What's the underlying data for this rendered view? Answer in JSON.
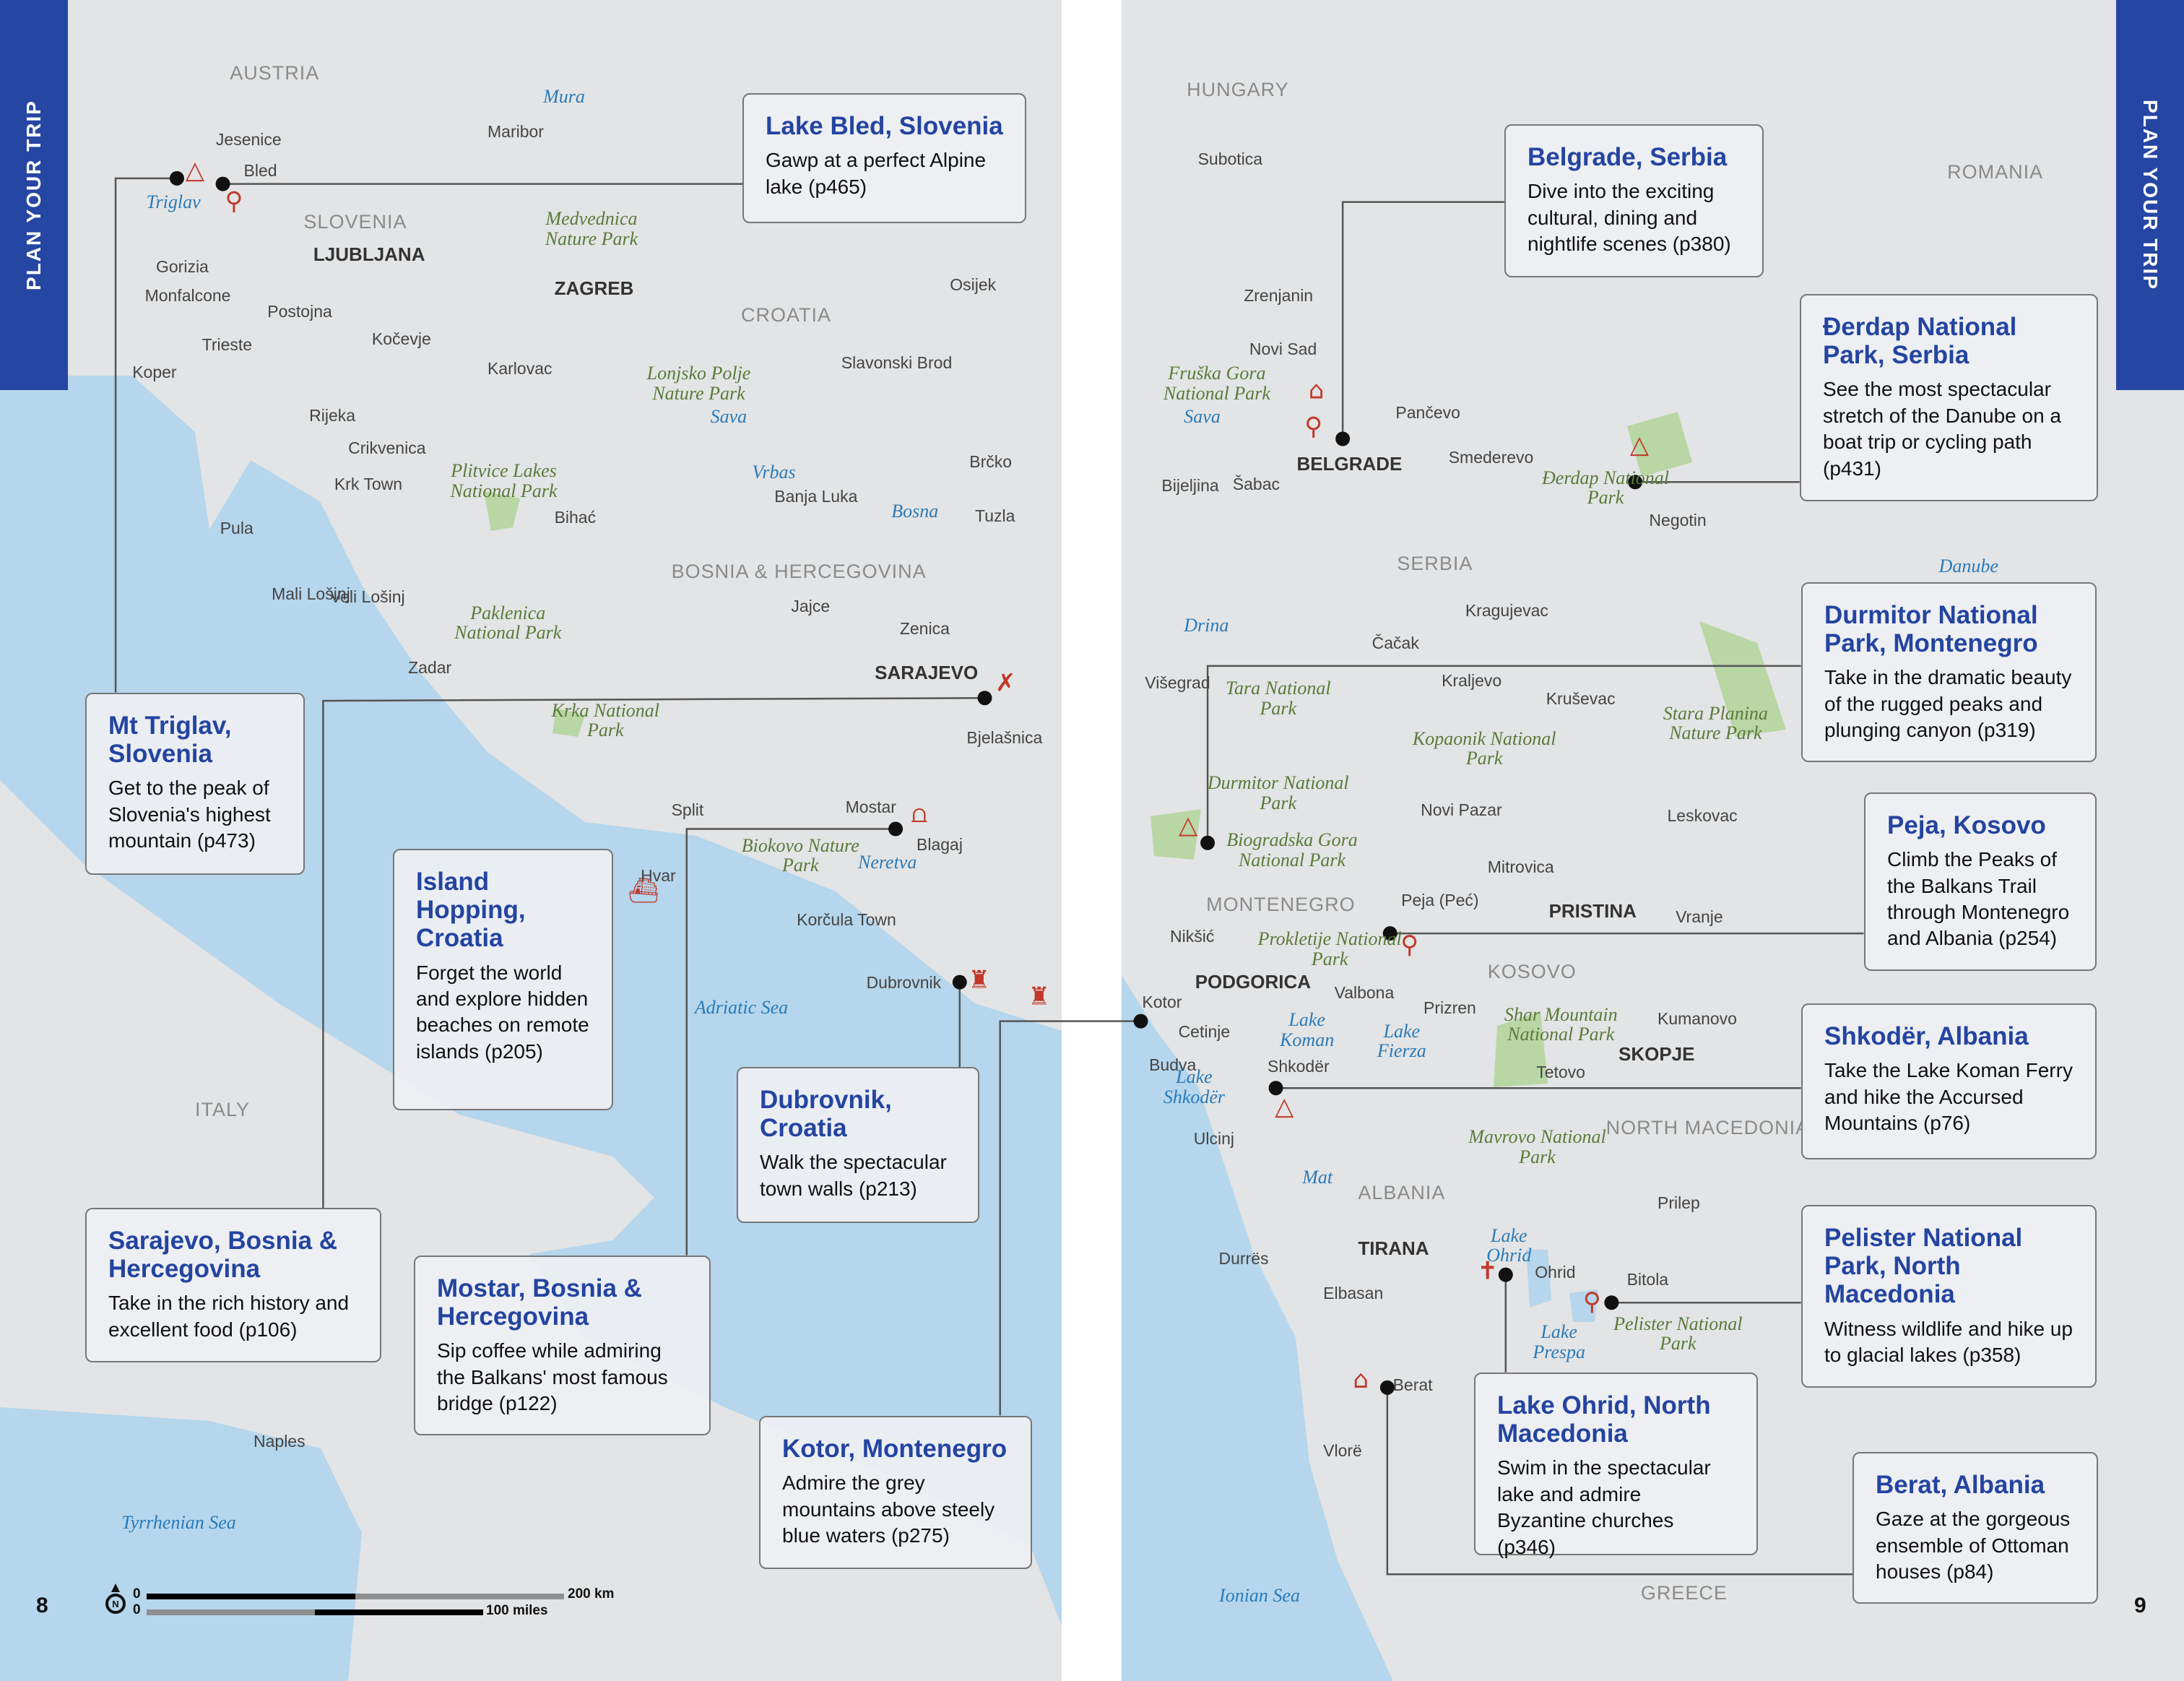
{
  "tabs": {
    "left": "PLAN YOUR TRIP",
    "right": "PLAN YOUR TRIP"
  },
  "page_numbers": {
    "left": "8",
    "right": "9"
  },
  "scale_bar": {
    "km_start": "0",
    "km_end": "200 km",
    "mi_start": "0",
    "mi_end": "100 miles"
  },
  "colors": {
    "sea": "#b5d6ec",
    "land": "#e3e4e5",
    "park": "#b9d6a5",
    "accent": "#2646a3",
    "title": "#2444a0",
    "marker": "#111111",
    "icon": "#c0392b"
  },
  "icons": [
    "north-arrow-icon",
    "capital-star-icon",
    "city-dot-icon",
    "mountain-icon",
    "hiking-icon",
    "castle-icon",
    "bridge-icon",
    "boat-icon",
    "food-icon",
    "museum-icon",
    "church-icon"
  ],
  "callouts": [
    {
      "title": "Lake Bled, Slovenia",
      "text": "Gawp at a perfect Alpine lake (p465)"
    },
    {
      "title": "Mt Triglav, Slovenia",
      "text": "Get to the peak of Slovenia's highest mountain (p473)"
    },
    {
      "title": "Island Hopping, Croatia",
      "text": "Forget the world and explore hidden beaches on remote islands (p205)"
    },
    {
      "title": "Sarajevo, Bosnia & Hercegovina",
      "text": "Take in the rich history and excellent food (p106)"
    },
    {
      "title": "Mostar, Bosnia & Hercegovina",
      "text": "Sip coffee while admiring the Balkans' most famous bridge (p122)"
    },
    {
      "title": "Dubrovnik, Croatia",
      "text": "Walk the spectacular town walls (p213)"
    },
    {
      "title": "Kotor, Montenegro",
      "text": "Admire the grey mountains above steely blue waters (p275)"
    },
    {
      "title": "Belgrade, Serbia",
      "text": "Dive into the exciting cultural, dining and nightlife scenes (p380)"
    },
    {
      "title": "Đerdap National Park, Serbia",
      "text": "See the most spectacular stretch of the Danube on a boat trip or cycling path (p431)"
    },
    {
      "title": "Durmitor National Park, Montenegro",
      "text": "Take in the dramatic beauty of the rugged peaks and plunging canyon (p319)"
    },
    {
      "title": "Peja, Kosovo",
      "text": "Climb the Peaks of the Balkans Trail through Montenegro and Albania (p254)"
    },
    {
      "title": "Shkodër, Albania",
      "text": "Take the Lake Koman Ferry and hike the Accursed Mountains (p76)"
    },
    {
      "title": "Pelister National Park, North Macedonia",
      "text": "Witness wildlife and hike up to glacial lakes (p358)"
    },
    {
      "title": "Lake Ohrid, North Macedonia",
      "text": "Swim in the spectacular lake and admire Byzantine churches (p346)"
    },
    {
      "title": "Berat, Albania",
      "text": "Gaze at the gorgeous ensemble of Ottoman houses (p84)"
    }
  ],
  "labels": [
    {
      "text": "AUSTRIA",
      "type": "country"
    },
    {
      "text": "Mura",
      "type": "river"
    },
    {
      "text": "Maribor",
      "type": "city"
    },
    {
      "text": "Jesenice",
      "type": "city"
    },
    {
      "text": "Bled",
      "type": "city"
    },
    {
      "text": "Triglav",
      "type": "river"
    },
    {
      "text": "SLOVENIA",
      "type": "country"
    },
    {
      "text": "Medvednica Nature Park",
      "type": "park"
    },
    {
      "text": "LJUBLJANA",
      "type": "capital"
    },
    {
      "text": "Gorizia",
      "type": "city"
    },
    {
      "text": "Monfalcone",
      "type": "city"
    },
    {
      "text": "Postojna",
      "type": "city"
    },
    {
      "text": "ZAGREB",
      "type": "capital"
    },
    {
      "text": "CROATIA",
      "type": "country"
    },
    {
      "text": "Osijek",
      "type": "city"
    },
    {
      "text": "Trieste",
      "type": "city"
    },
    {
      "text": "Kočevje",
      "type": "city"
    },
    {
      "text": "Karlovac",
      "type": "city"
    },
    {
      "text": "Koper",
      "type": "city"
    },
    {
      "text": "Lonjsko Polje Nature Park",
      "type": "park"
    },
    {
      "text": "Slavonski Brod",
      "type": "city"
    },
    {
      "text": "Sava",
      "type": "river"
    },
    {
      "text": "Rijeka",
      "type": "city"
    },
    {
      "text": "Crikvenica",
      "type": "city"
    },
    {
      "text": "Vrbas",
      "type": "river"
    },
    {
      "text": "Plitvice Lakes National Park",
      "type": "park"
    },
    {
      "text": "Brčko",
      "type": "city"
    },
    {
      "text": "Krk Town",
      "type": "city"
    },
    {
      "text": "Banja Luka",
      "type": "city"
    },
    {
      "text": "Bosna",
      "type": "river"
    },
    {
      "text": "Bihać",
      "type": "city"
    },
    {
      "text": "Tuzla",
      "type": "city"
    },
    {
      "text": "Pula",
      "type": "city"
    },
    {
      "text": "BOSNIA & HERCEGOVINA",
      "type": "country"
    },
    {
      "text": "Mali Lošinj",
      "type": "city"
    },
    {
      "text": "Veli Lošinj",
      "type": "city"
    },
    {
      "text": "Jajce",
      "type": "city"
    },
    {
      "text": "Paklenica National Park",
      "type": "park"
    },
    {
      "text": "Zenica",
      "type": "city"
    },
    {
      "text": "SARAJEVO",
      "type": "capital"
    },
    {
      "text": "Zadar",
      "type": "city"
    },
    {
      "text": "Krka National Park",
      "type": "park"
    },
    {
      "text": "Bjelašnica",
      "type": "city"
    },
    {
      "text": "Split",
      "type": "city"
    },
    {
      "text": "Mostar",
      "type": "city"
    },
    {
      "text": "Blagaj",
      "type": "city"
    },
    {
      "text": "Biokovo Nature Park",
      "type": "park"
    },
    {
      "text": "Hvar",
      "type": "city"
    },
    {
      "text": "Neretva",
      "type": "river"
    },
    {
      "text": "Korčula Town",
      "type": "city"
    },
    {
      "text": "Dubrovnik",
      "type": "city"
    },
    {
      "text": "Adriatic Sea",
      "type": "sea"
    },
    {
      "text": "ITALY",
      "type": "country"
    },
    {
      "text": "Naples",
      "type": "city"
    },
    {
      "text": "Tyrrhenian Sea",
      "type": "sea"
    },
    {
      "text": "HUNGARY",
      "type": "country"
    },
    {
      "text": "Subotica",
      "type": "city"
    },
    {
      "text": "ROMANIA",
      "type": "country"
    },
    {
      "text": "Zrenjanin",
      "type": "city"
    },
    {
      "text": "Novi Sad",
      "type": "city"
    },
    {
      "text": "Fruška Gora National Park",
      "type": "park"
    },
    {
      "text": "Sava",
      "type": "river"
    },
    {
      "text": "Pančevo",
      "type": "city"
    },
    {
      "text": "BELGRADE",
      "type": "capital"
    },
    {
      "text": "Smederevo",
      "type": "city"
    },
    {
      "text": "Bijeljina",
      "type": "city"
    },
    {
      "text": "Šabac",
      "type": "city"
    },
    {
      "text": "Đerdap National Park",
      "type": "park"
    },
    {
      "text": "Negotin",
      "type": "city"
    },
    {
      "text": "SERBIA",
      "type": "country"
    },
    {
      "text": "Danube",
      "type": "river"
    },
    {
      "text": "Drina",
      "type": "river"
    },
    {
      "text": "Kragujevac",
      "type": "city"
    },
    {
      "text": "Čačak",
      "type": "city"
    },
    {
      "text": "Višegrad",
      "type": "city"
    },
    {
      "text": "Tara National Park",
      "type": "park"
    },
    {
      "text": "Kraljevo",
      "type": "city"
    },
    {
      "text": "Kruševac",
      "type": "city"
    },
    {
      "text": "Kopaonik National Park",
      "type": "park"
    },
    {
      "text": "Stara Planina Nature Park",
      "type": "park"
    },
    {
      "text": "Durmitor National Park",
      "type": "park"
    },
    {
      "text": "Leskovac",
      "type": "city"
    },
    {
      "text": "Novi Pazar",
      "type": "city"
    },
    {
      "text": "Biogradska Gora National Park",
      "type": "park"
    },
    {
      "text": "Mitrovica",
      "type": "city"
    },
    {
      "text": "MONTENEGRO",
      "type": "country"
    },
    {
      "text": "PRISTINA",
      "type": "capital"
    },
    {
      "text": "Peja (Peć)",
      "type": "city"
    },
    {
      "text": "Vranje",
      "type": "city"
    },
    {
      "text": "Nikšić",
      "type": "city"
    },
    {
      "text": "Prokletije National Park",
      "type": "park"
    },
    {
      "text": "KOSOVO",
      "type": "country"
    },
    {
      "text": "PODGORICA",
      "type": "capital"
    },
    {
      "text": "Valbona",
      "type": "city"
    },
    {
      "text": "Kotor",
      "type": "city"
    },
    {
      "text": "Prizren",
      "type": "city"
    },
    {
      "text": "Shar Mountain National Park",
      "type": "park"
    },
    {
      "text": "Kumanovo",
      "type": "city"
    },
    {
      "text": "Lake Koman",
      "type": "lake"
    },
    {
      "text": "Lake Fierza",
      "type": "lake"
    },
    {
      "text": "Cetinje",
      "type": "city"
    },
    {
      "text": "SKOPJE",
      "type": "capital"
    },
    {
      "text": "Budva",
      "type": "city"
    },
    {
      "text": "Tetovo",
      "type": "city"
    },
    {
      "text": "Shkodër",
      "type": "city"
    },
    {
      "text": "Lake Shkodër",
      "type": "lake"
    },
    {
      "text": "NORTH MACEDONIA",
      "type": "country"
    },
    {
      "text": "Ulcinj",
      "type": "city"
    },
    {
      "text": "Mavrovo National Park",
      "type": "park"
    },
    {
      "text": "Mat",
      "type": "river"
    },
    {
      "text": "ALBANIA",
      "type": "country"
    },
    {
      "text": "Prilep",
      "type": "city"
    },
    {
      "text": "Lake Ohrid",
      "type": "lake"
    },
    {
      "text": "TIRANA",
      "type": "capital"
    },
    {
      "text": "Ohrid",
      "type": "city"
    },
    {
      "text": "Bitola",
      "type": "city"
    },
    {
      "text": "Durrës",
      "type": "city"
    },
    {
      "text": "Elbasan",
      "type": "city"
    },
    {
      "text": "Lake Prespa",
      "type": "lake"
    },
    {
      "text": "Pelister National Park",
      "type": "park"
    },
    {
      "text": "Berat",
      "type": "city"
    },
    {
      "text": "Vlorë",
      "type": "city"
    },
    {
      "text": "Ionian Sea",
      "type": "sea"
    },
    {
      "text": "GREECE",
      "type": "country"
    }
  ]
}
